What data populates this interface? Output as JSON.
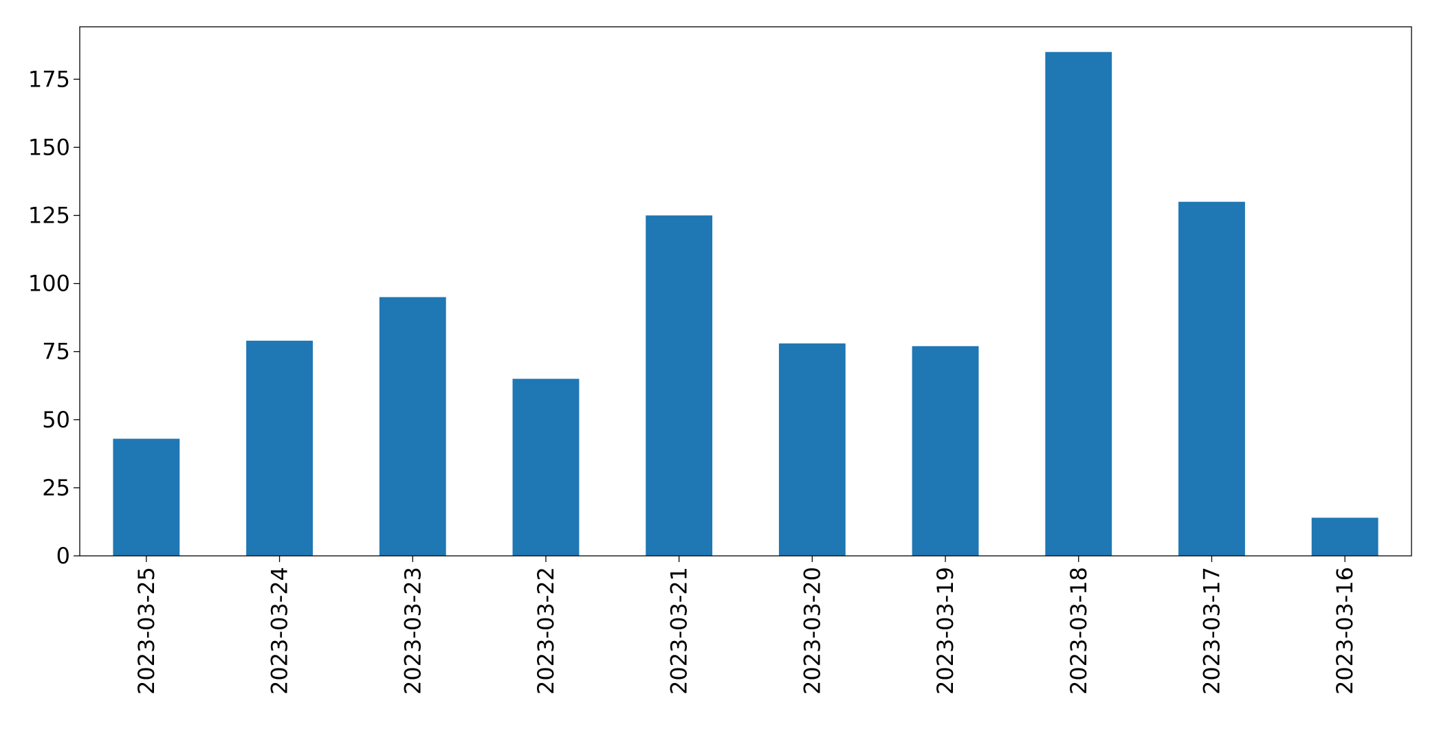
{
  "chart_data": {
    "type": "bar",
    "categories": [
      "2023-03-25",
      "2023-03-24",
      "2023-03-23",
      "2023-03-22",
      "2023-03-21",
      "2023-03-20",
      "2023-03-19",
      "2023-03-18",
      "2023-03-17",
      "2023-03-16"
    ],
    "values": [
      43,
      79,
      95,
      65,
      125,
      78,
      77,
      185,
      130,
      14
    ],
    "color": "#1f77b4",
    "ylim": [
      0,
      194.25
    ],
    "yticks": [
      0,
      25,
      50,
      75,
      100,
      125,
      150,
      175
    ],
    "grid": false
  }
}
